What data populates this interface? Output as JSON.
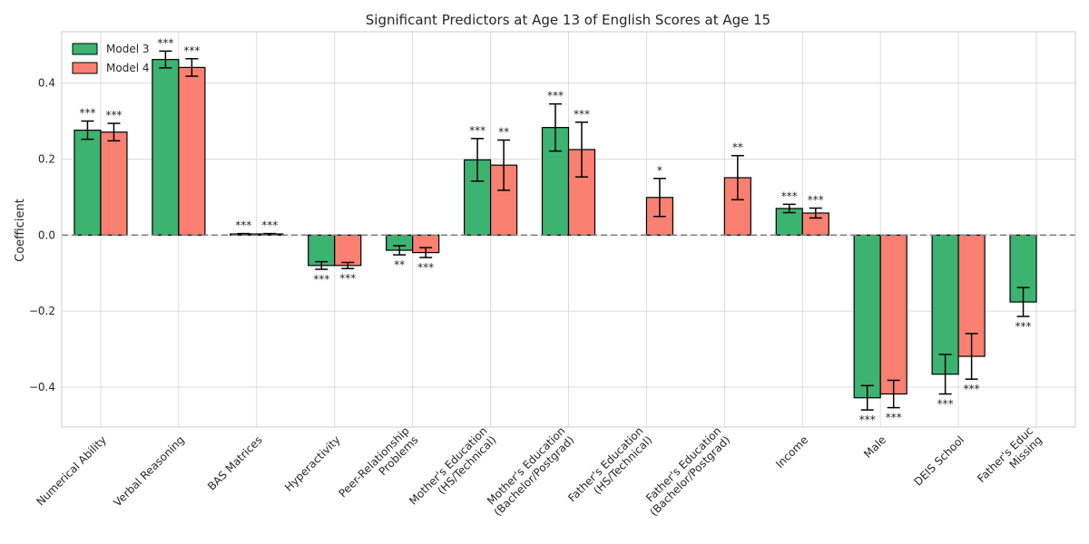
{
  "chart_data": {
    "type": "bar",
    "title": "Significant Predictors at Age 13 of English Scores at Age 15",
    "xlabel": "",
    "ylabel": "Coefficient",
    "ylim": [
      -0.505,
      0.535
    ],
    "yticks": [
      -0.4,
      -0.2,
      0.0,
      0.2,
      0.4
    ],
    "ytick_labels": [
      "−0.4",
      "−0.2",
      "0.0",
      "0.2",
      "0.4"
    ],
    "grid": true,
    "reference_line": 0.0,
    "legend_placement": "top-left",
    "categories": [
      "Numerical Ability",
      "Verbal Reasoning",
      "BAS Matrices",
      "Hyperactivity",
      "Peer-Relationship\nProblems",
      "Mother's Education\n(HS/Technical)",
      "Mother's Education\n(Bachelor/Postgrad)",
      "Father's Education\n(HS/Technical)",
      "Father's Education\n(Bachelor/Postgrad)",
      "Income",
      "Male",
      "DEIS School",
      "Father's Educ\nMissing"
    ],
    "series": [
      {
        "name": "Model 3",
        "color": "#3cb371",
        "values": [
          0.276,
          0.462,
          0.003,
          -0.08,
          -0.04,
          0.198,
          0.283,
          null,
          null,
          0.07,
          -0.428,
          -0.366,
          -0.176
        ],
        "errors": [
          0.024,
          0.022,
          0.001,
          0.01,
          0.012,
          0.056,
          0.062,
          null,
          null,
          0.011,
          0.032,
          0.052,
          0.038
        ],
        "significance": [
          "***",
          "***",
          "***",
          "***",
          "**",
          "***",
          "***",
          "",
          "",
          "***",
          "***",
          "***",
          "***"
        ]
      },
      {
        "name": "Model 4",
        "color": "#fa8072",
        "values": [
          0.271,
          0.441,
          0.003,
          -0.08,
          -0.046,
          0.184,
          0.225,
          0.099,
          0.151,
          0.058,
          -0.418,
          -0.319,
          null
        ],
        "errors": [
          0.023,
          0.023,
          0.001,
          0.008,
          0.013,
          0.066,
          0.072,
          0.05,
          0.058,
          0.013,
          0.036,
          0.06,
          null
        ],
        "significance": [
          "***",
          "***",
          "***",
          "***",
          "***",
          "**",
          "***",
          "*",
          "**",
          "***",
          "***",
          "***",
          ""
        ]
      }
    ]
  }
}
